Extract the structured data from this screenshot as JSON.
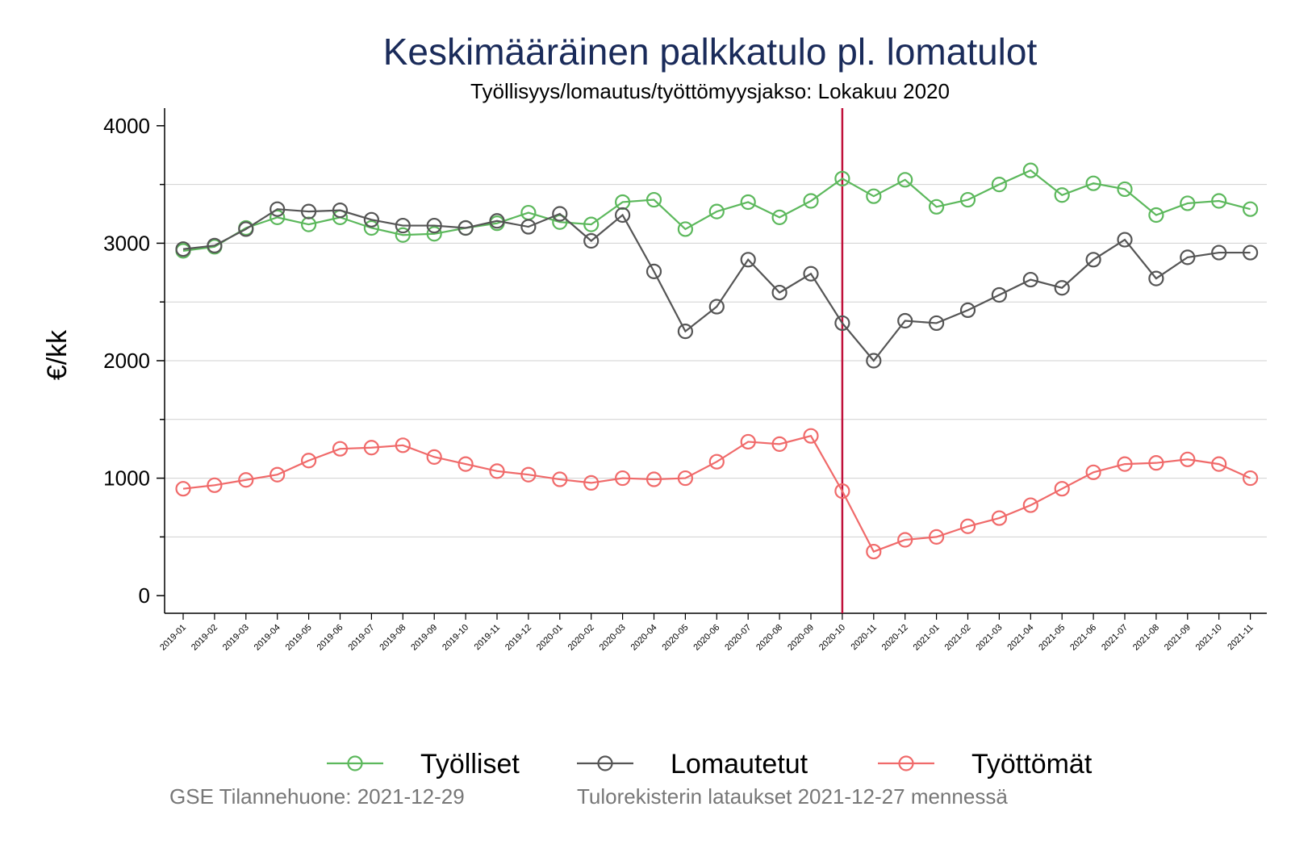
{
  "chart_data": {
    "type": "line",
    "title": "Keskimääräinen palkkatulo pl. lomatulot",
    "subtitle": "Työllisyys/lomautus/työttömyysjakso: Lokakuu 2020",
    "ylabel": "€/kk",
    "ylim": [
      -150,
      4150
    ],
    "yticks": [
      0,
      1000,
      2000,
      3000,
      4000
    ],
    "grid": true,
    "legend_position": "bottom",
    "marker_line": {
      "x": "2020-10",
      "color": "#c0103a"
    },
    "categories": [
      "2019-01",
      "2019-02",
      "2019-03",
      "2019-04",
      "2019-05",
      "2019-06",
      "2019-07",
      "2019-08",
      "2019-09",
      "2019-10",
      "2019-11",
      "2019-12",
      "2020-01",
      "2020-02",
      "2020-03",
      "2020-04",
      "2020-05",
      "2020-06",
      "2020-07",
      "2020-08",
      "2020-09",
      "2020-10",
      "2020-11",
      "2020-12",
      "2021-01",
      "2021-02",
      "2021-03",
      "2021-04",
      "2021-05",
      "2021-06",
      "2021-07",
      "2021-08",
      "2021-09",
      "2021-10",
      "2021-11"
    ],
    "series": [
      {
        "name": "Työlliset",
        "color": "#5cb85c",
        "values": [
          2935,
          2970,
          3130,
          3220,
          3160,
          3220,
          3130,
          3070,
          3080,
          3130,
          3170,
          3260,
          3180,
          3160,
          3350,
          3370,
          3120,
          3270,
          3350,
          3220,
          3360,
          3550,
          3400,
          3540,
          3310,
          3370,
          3500,
          3620,
          3410,
          3510,
          3460,
          3240,
          3340,
          3360,
          3290
        ]
      },
      {
        "name": "Lomautetut",
        "color": "#555555",
        "values": [
          2950,
          2980,
          3120,
          3290,
          3270,
          3280,
          3200,
          3150,
          3150,
          3130,
          3190,
          3140,
          3250,
          3020,
          3240,
          2760,
          2250,
          2460,
          2860,
          2580,
          2740,
          2320,
          2000,
          2340,
          2320,
          2430,
          2560,
          2690,
          2620,
          2860,
          3030,
          2700,
          2880,
          2920,
          2920
        ]
      },
      {
        "name": "Työttömät",
        "color": "#f06a6a",
        "values": [
          910,
          940,
          985,
          1030,
          1150,
          1250,
          1260,
          1280,
          1180,
          1120,
          1060,
          1030,
          990,
          960,
          1000,
          990,
          1000,
          1140,
          1310,
          1290,
          1360,
          890,
          375,
          475,
          500,
          590,
          660,
          770,
          910,
          1050,
          1120,
          1130,
          1160,
          1120,
          1000
        ]
      }
    ]
  },
  "footer": {
    "left": "GSE Tilannehuone: 2021-12-29",
    "right": "Tulorekisterin lataukset 2021-12-27 mennessä"
  }
}
